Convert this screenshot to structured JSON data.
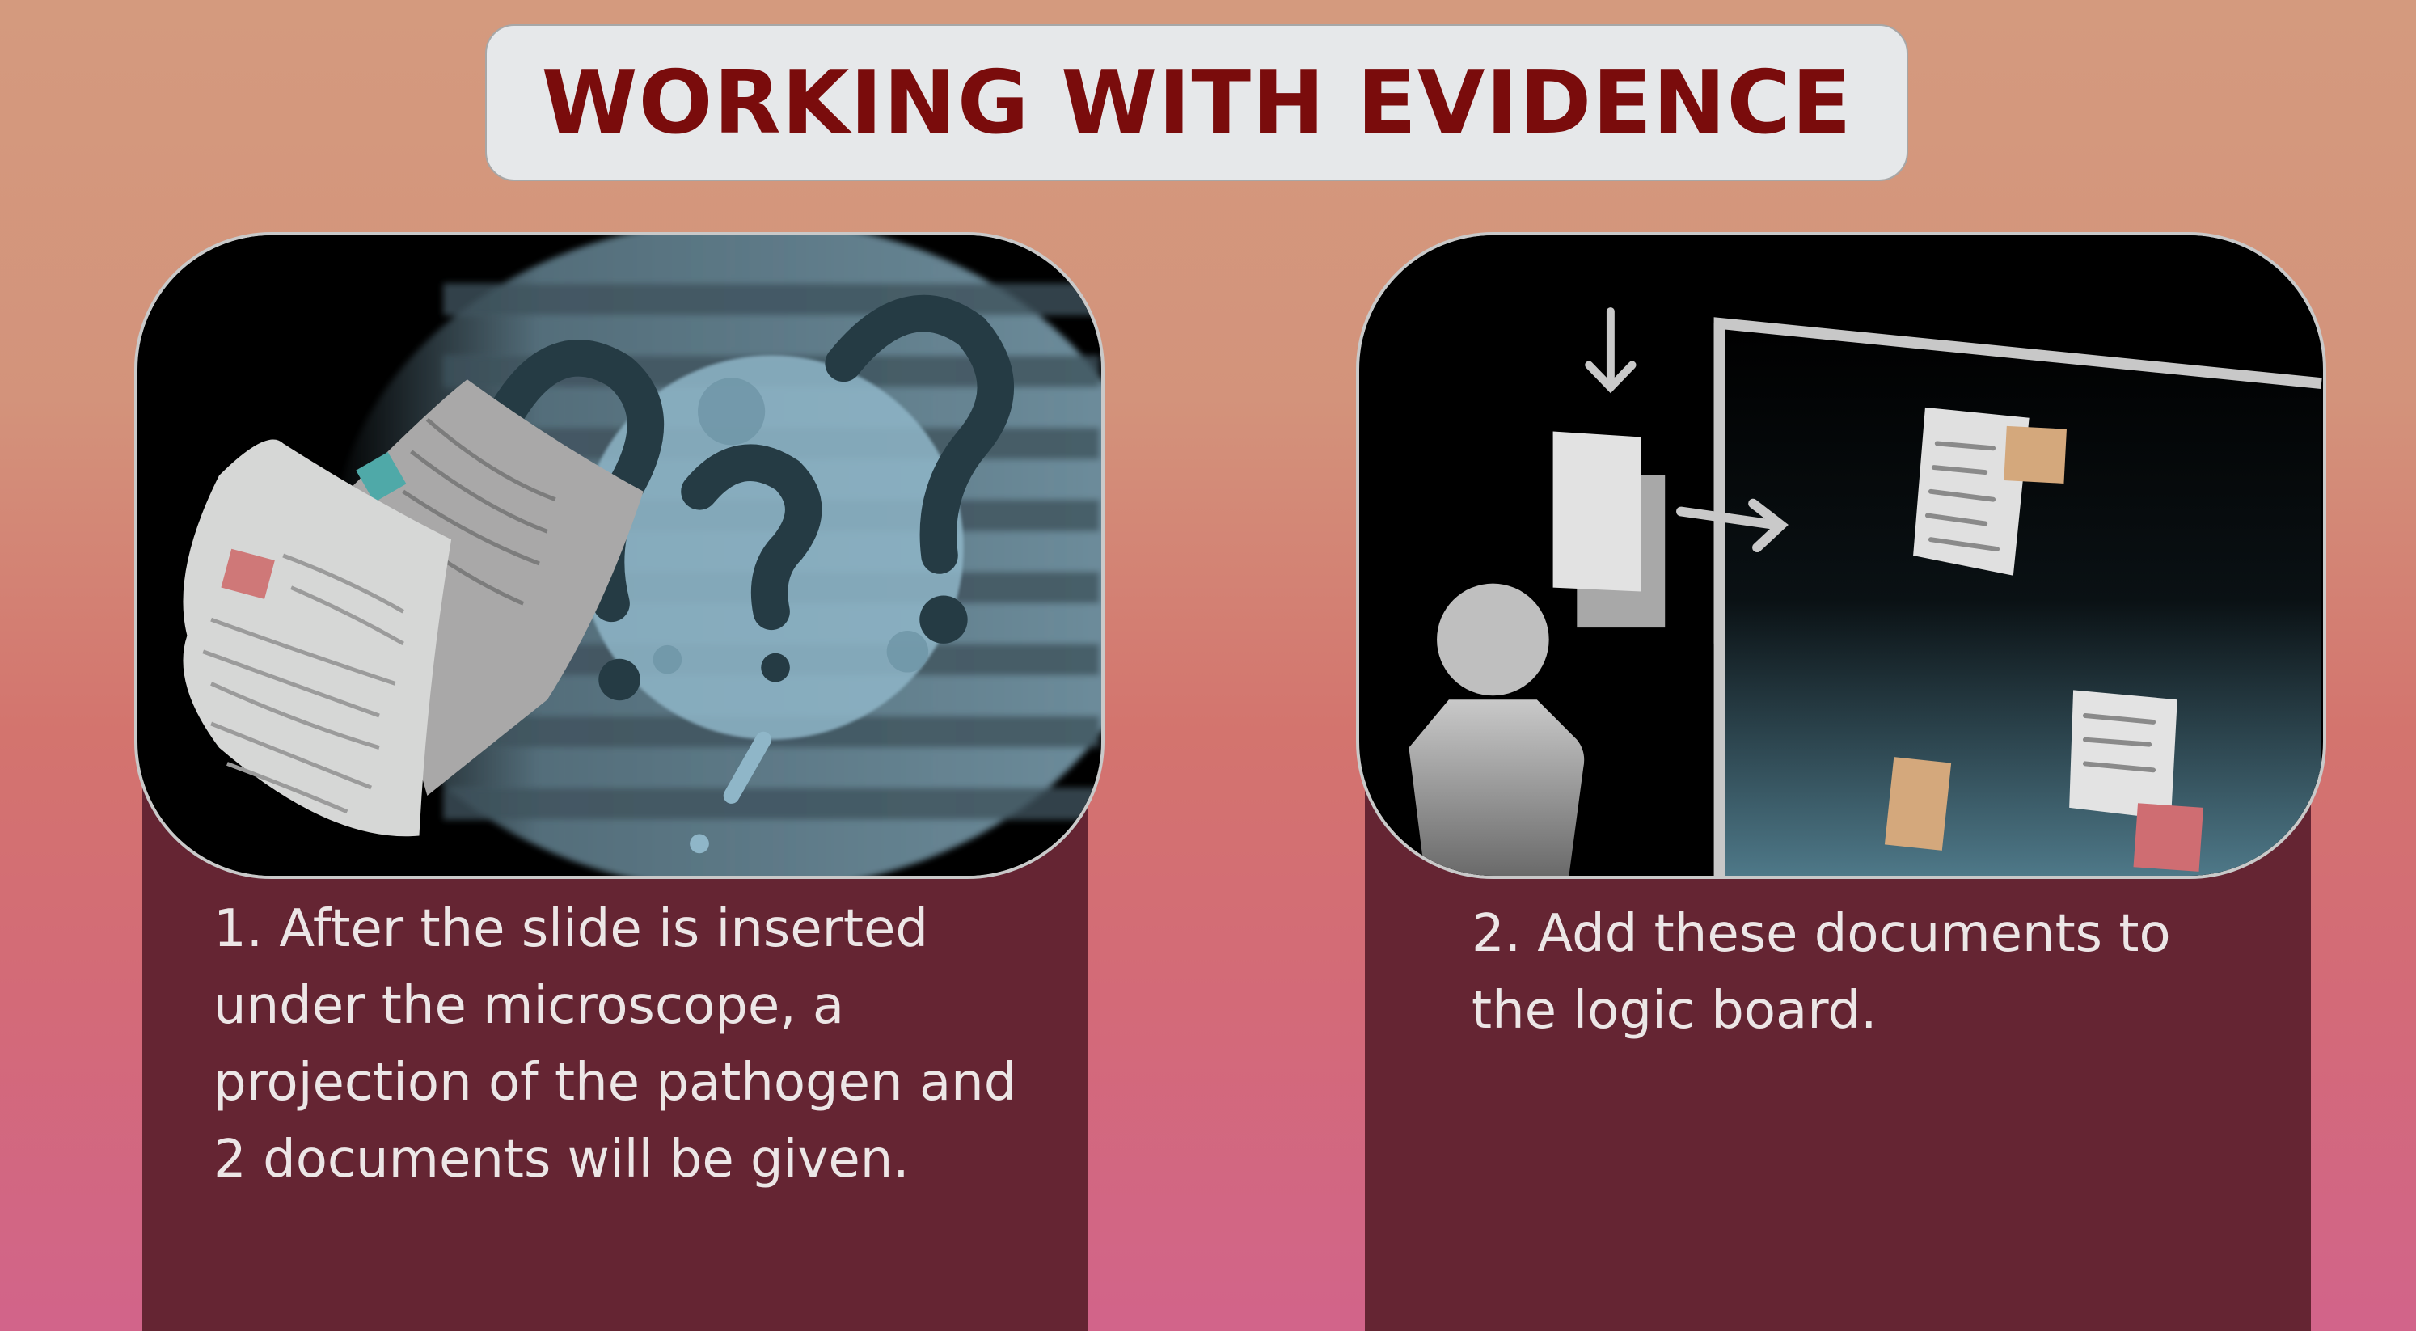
{
  "header": {
    "title": "WORKING WITH EVIDENCE"
  },
  "steps": [
    {
      "text": "1. After the slide is inserted under the microscope, a projection of the pathogen and 2 documents will be given.",
      "illustration": "microscope-projection-with-documents-and-question-marks"
    },
    {
      "text": "2. Add these documents to the logic board.",
      "illustration": "person-placing-document-on-logic-board"
    }
  ],
  "colors": {
    "title": "#7a0c0c",
    "card": "#652533",
    "text": "#ece6e6",
    "background_top": "#d49a7e",
    "background_bottom": "#d2648a"
  }
}
